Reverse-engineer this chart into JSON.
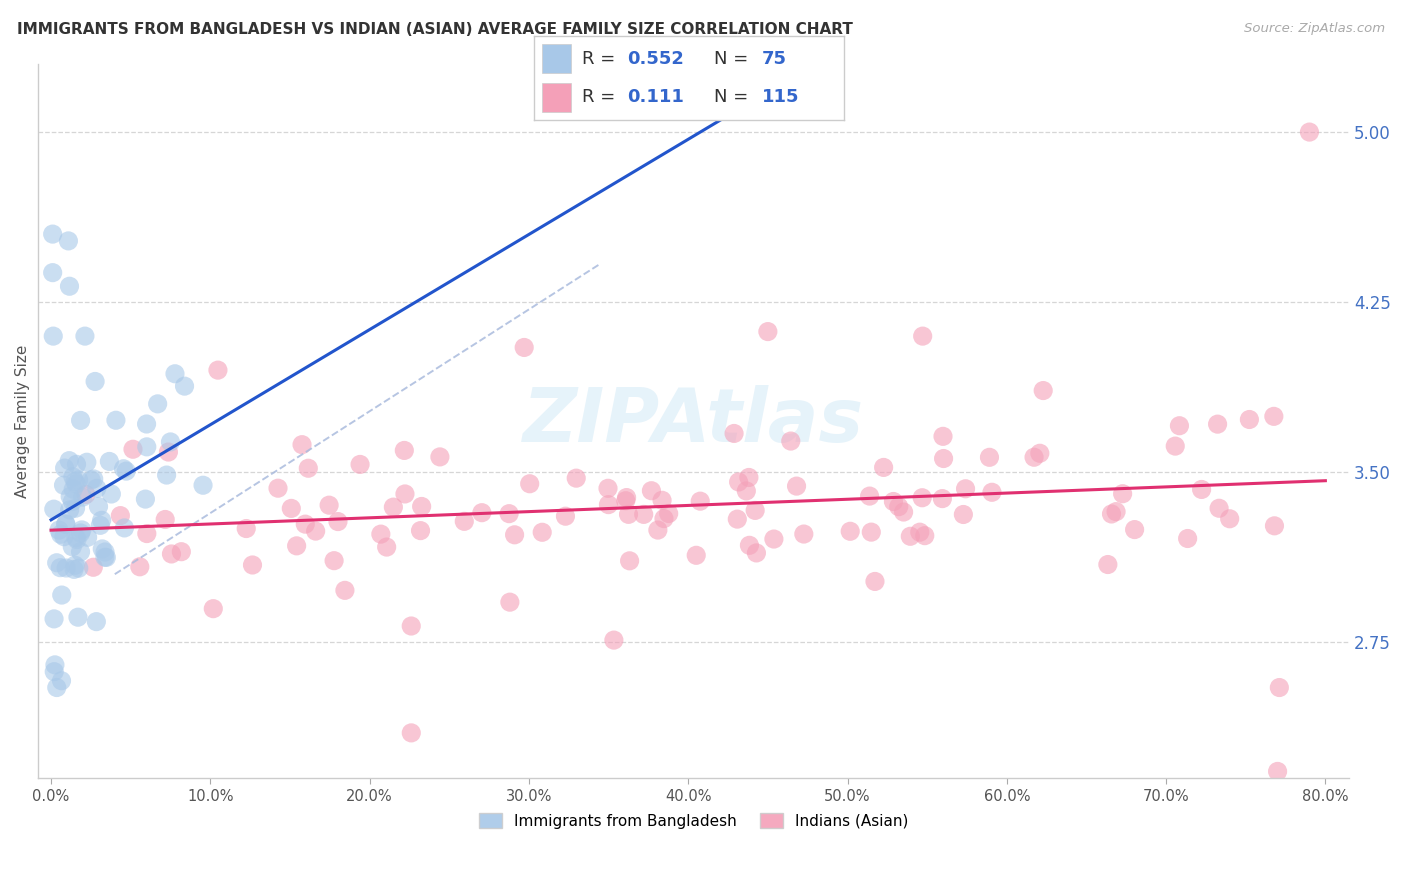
{
  "title": "IMMIGRANTS FROM BANGLADESH VS INDIAN (ASIAN) AVERAGE FAMILY SIZE CORRELATION CHART",
  "source": "Source: ZipAtlas.com",
  "ylabel": "Average Family Size",
  "background_color": "#ffffff",
  "watermark": "ZIPAtlas",
  "blue_color": "#a8c8e8",
  "pink_color": "#f4a0b8",
  "line_blue": "#2255cc",
  "line_pink": "#e03070",
  "diag_color": "#aabbdd",
  "ytick_color": "#4472c4",
  "title_color": "#333333",
  "source_color": "#aaaaaa",
  "grid_color": "#cccccc",
  "yticks": [
    2.75,
    3.5,
    4.25,
    5.0
  ],
  "xtick_labels": [
    "0.0%",
    "10.0%",
    "20.0%",
    "30.0%",
    "40.0%",
    "50.0%",
    "60.0%",
    "70.0%",
    "80.0%"
  ],
  "xtick_vals": [
    0.0,
    0.1,
    0.2,
    0.3,
    0.4,
    0.5,
    0.6,
    0.7,
    0.8
  ],
  "xlim": [
    -0.008,
    0.815
  ],
  "ylim": [
    2.15,
    5.3
  ]
}
